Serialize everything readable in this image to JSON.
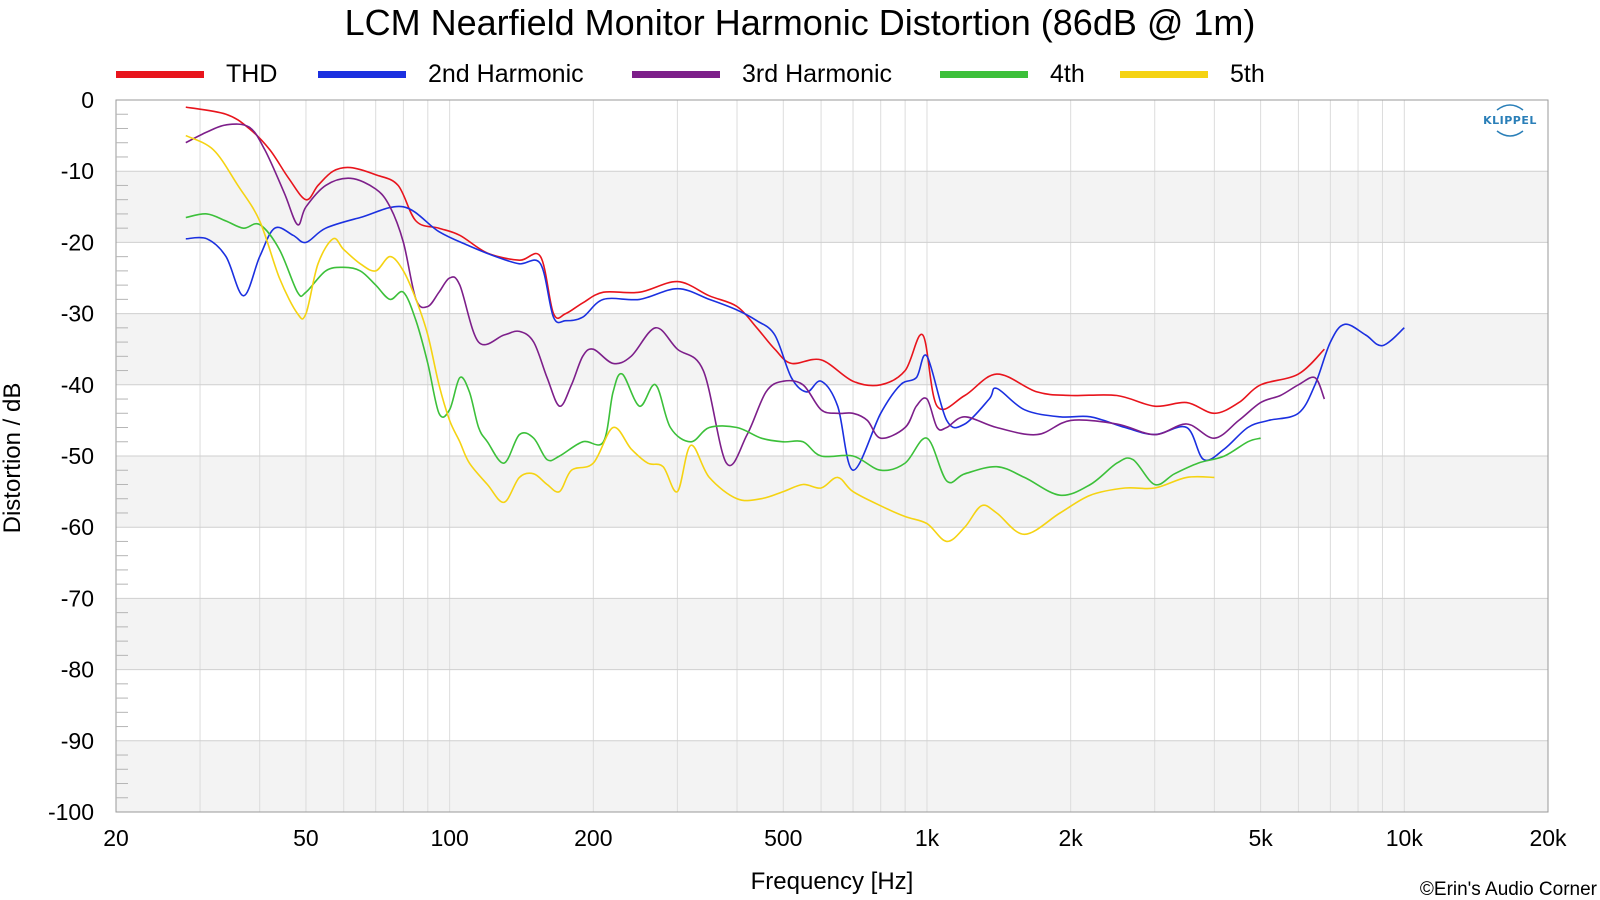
{
  "chart_data": {
    "type": "line",
    "title": "LCM Nearfield Monitor Harmonic Distortion (86dB @ 1m)",
    "xlabel": "Frequency [Hz]",
    "ylabel": "Distortion / dB",
    "x_scale": "log",
    "xlim": [
      20,
      20000
    ],
    "ylim": [
      -100,
      0
    ],
    "grid": true,
    "legend_position": "top",
    "x_ticks": [
      {
        "value": 20,
        "label": "20"
      },
      {
        "value": 50,
        "label": "50"
      },
      {
        "value": 100,
        "label": "100"
      },
      {
        "value": 200,
        "label": "200"
      },
      {
        "value": 500,
        "label": "500"
      },
      {
        "value": 1000,
        "label": "1k"
      },
      {
        "value": 2000,
        "label": "2k"
      },
      {
        "value": 5000,
        "label": "5k"
      },
      {
        "value": 10000,
        "label": "10k"
      },
      {
        "value": 20000,
        "label": "20k"
      }
    ],
    "y_ticks": [
      {
        "value": 0,
        "label": "0"
      },
      {
        "value": -10,
        "label": "-10"
      },
      {
        "value": -20,
        "label": "-20"
      },
      {
        "value": -30,
        "label": "-30"
      },
      {
        "value": -40,
        "label": "-40"
      },
      {
        "value": -50,
        "label": "-50"
      },
      {
        "value": -60,
        "label": "-60"
      },
      {
        "value": -70,
        "label": "-70"
      },
      {
        "value": -80,
        "label": "-80"
      },
      {
        "value": -90,
        "label": "-90"
      },
      {
        "value": -100,
        "label": "-100"
      }
    ],
    "series": [
      {
        "name": "THD",
        "color": "#e8141c",
        "x": [
          28,
          34,
          38,
          42,
          46,
          50,
          53,
          57,
          62,
          70,
          78,
          85,
          95,
          105,
          120,
          140,
          155,
          165,
          175,
          190,
          210,
          250,
          300,
          350,
          400,
          440,
          480,
          520,
          600,
          700,
          800,
          900,
          980,
          1050,
          1200,
          1400,
          1700,
          2000,
          2500,
          3000,
          3500,
          4000,
          4500,
          5000,
          6000,
          6800
        ],
        "y": [
          -1,
          -2,
          -4,
          -7,
          -11,
          -14,
          -12,
          -10,
          -9.5,
          -10.5,
          -12,
          -17,
          -18,
          -19,
          -21.5,
          -22.5,
          -22,
          -30,
          -30,
          -28.5,
          -27,
          -27,
          -25.5,
          -27.5,
          -29,
          -32,
          -35,
          -37,
          -36.5,
          -39.5,
          -40,
          -38,
          -33,
          -43,
          -41.5,
          -38.5,
          -41,
          -41.5,
          -41.5,
          -43,
          -42.5,
          -44,
          -42.5,
          -40,
          -38.5,
          -35
        ]
      },
      {
        "name": "2nd Harmonic",
        "color": "#1b30e0",
        "x": [
          28,
          31,
          34,
          37,
          40,
          43,
          47,
          50,
          55,
          65,
          80,
          95,
          110,
          125,
          140,
          155,
          165,
          175,
          190,
          210,
          250,
          300,
          350,
          400,
          440,
          480,
          520,
          560,
          600,
          650,
          700,
          800,
          880,
          950,
          1000,
          1100,
          1200,
          1350,
          1400,
          1600,
          1900,
          2200,
          2600,
          3000,
          3500,
          3800,
          4200,
          4700,
          5200,
          6000,
          6500,
          7000,
          7500,
          8300,
          9000,
          10000
        ],
        "y": [
          -19.5,
          -19.5,
          -22,
          -27.5,
          -22,
          -18,
          -19,
          -20,
          -18,
          -16.5,
          -15,
          -18.5,
          -20.5,
          -22,
          -23,
          -23,
          -30.5,
          -31,
          -30.5,
          -28,
          -28,
          -26.5,
          -28,
          -29.5,
          -31,
          -33,
          -39,
          -41,
          -39.5,
          -43,
          -52,
          -44,
          -40,
          -39,
          -36,
          -45,
          -45.5,
          -42,
          -40.5,
          -43.5,
          -44.5,
          -44.5,
          -46,
          -47,
          -46,
          -50.5,
          -49,
          -46,
          -45,
          -44,
          -40,
          -34,
          -31.5,
          -33,
          -34.5,
          -32
        ]
      },
      {
        "name": "3rd Harmonic",
        "color": "#7d1f8a",
        "x": [
          28,
          31,
          34,
          38,
          41,
          45,
          48,
          50,
          55,
          62,
          70,
          75,
          80,
          85,
          90,
          95,
          100,
          105,
          115,
          130,
          140,
          150,
          160,
          170,
          180,
          190,
          200,
          220,
          240,
          270,
          300,
          340,
          380,
          420,
          460,
          500,
          550,
          600,
          650,
          700,
          750,
          800,
          900,
          950,
          1000,
          1050,
          1100,
          1200,
          1400,
          1700,
          2000,
          2500,
          3000,
          3500,
          4000,
          4500,
          5000,
          5500,
          6000,
          6500,
          6800
        ],
        "y": [
          -6,
          -4.5,
          -3.5,
          -3.8,
          -7,
          -13,
          -17.5,
          -15,
          -12,
          -11,
          -12.5,
          -15,
          -20,
          -28,
          -29,
          -27,
          -25,
          -26,
          -34,
          -33,
          -32.5,
          -34,
          -39,
          -43,
          -40,
          -36,
          -35,
          -37,
          -36,
          -32,
          -35,
          -38,
          -51,
          -47,
          -41,
          -39.5,
          -40,
          -43.5,
          -44,
          -44,
          -45,
          -47.5,
          -46,
          -43,
          -42,
          -46,
          -46,
          -44.5,
          -46,
          -47,
          -45,
          -45.5,
          -47,
          -45.5,
          -47.5,
          -45,
          -42.5,
          -41.5,
          -40,
          -39,
          -42
        ]
      },
      {
        "name": "4th",
        "color": "#3cc03a",
        "x": [
          28,
          31,
          34,
          37,
          40,
          44,
          48,
          50,
          55,
          60,
          65,
          70,
          75,
          80,
          85,
          90,
          95,
          100,
          105,
          110,
          115,
          120,
          130,
          140,
          150,
          160,
          170,
          190,
          210,
          220,
          230,
          250,
          270,
          290,
          320,
          350,
          400,
          450,
          500,
          550,
          600,
          700,
          800,
          900,
          1000,
          1100,
          1200,
          1400,
          1600,
          1900,
          2200,
          2500,
          2700,
          3000,
          3300,
          3700,
          4200,
          4700,
          5000
        ],
        "y": [
          -16.5,
          -16,
          -17,
          -18,
          -17.5,
          -21,
          -27,
          -27,
          -24,
          -23.5,
          -24,
          -26,
          -28,
          -27,
          -31,
          -37,
          -44,
          -43.5,
          -39,
          -41,
          -46,
          -48,
          -51,
          -47,
          -47.5,
          -50.5,
          -50,
          -48,
          -48,
          -41,
          -38.5,
          -43,
          -40,
          -46,
          -48,
          -46,
          -46,
          -47.5,
          -48,
          -48,
          -50,
          -50,
          -52,
          -51,
          -47.5,
          -53.5,
          -52.5,
          -51.5,
          -53,
          -55.5,
          -54,
          -51,
          -50.5,
          -54,
          -52.5,
          -51,
          -50,
          -48,
          -47.5
        ]
      },
      {
        "name": "5th",
        "color": "#f5d312",
        "x": [
          28,
          32,
          36,
          40,
          44,
          48,
          50,
          53,
          57,
          60,
          65,
          70,
          75,
          80,
          85,
          90,
          95,
          100,
          105,
          110,
          120,
          130,
          140,
          150,
          160,
          170,
          180,
          200,
          220,
          240,
          260,
          280,
          300,
          320,
          350,
          400,
          450,
          500,
          550,
          600,
          650,
          700,
          800,
          900,
          1000,
          1100,
          1200,
          1300,
          1400,
          1600,
          1900,
          2200,
          2600,
          3000,
          3500,
          4000
        ],
        "y": [
          -5,
          -7,
          -12,
          -17,
          -25,
          -30,
          -30,
          -23,
          -19.5,
          -21,
          -23,
          -24,
          -22,
          -24,
          -28,
          -33,
          -40,
          -45,
          -48,
          -51,
          -54,
          -56.5,
          -53,
          -52.5,
          -54,
          -55,
          -52,
          -51,
          -46,
          -49,
          -51,
          -51.5,
          -55,
          -48.5,
          -53,
          -56,
          -56,
          -55,
          -54,
          -54.5,
          -53,
          -55,
          -57,
          -58.5,
          -59.5,
          -62,
          -60,
          -57,
          -58,
          -61,
          -58,
          -55.5,
          -54.5,
          -54.5,
          -53,
          -53
        ]
      }
    ]
  },
  "legend": {
    "items": [
      "THD",
      "2nd Harmonic",
      "3rd Harmonic",
      "4th",
      "5th"
    ]
  },
  "logo_text": "KLIPPEL",
  "copyright": "©Erin's Audio Corner"
}
